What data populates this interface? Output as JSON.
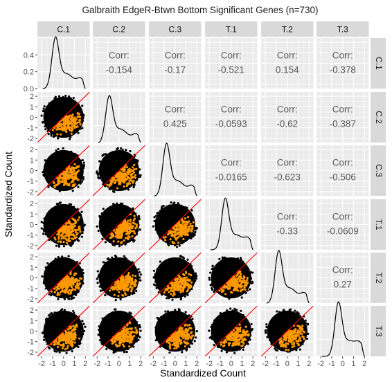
{
  "chart_data": {
    "type": "scatter",
    "title": "Galbraith EdgeR-Btwn Bottom Significant Genes (n=730)",
    "xlabel": "Standardized Count",
    "ylabel": "Standardized Count",
    "variables": [
      "C.1",
      "C.2",
      "C.3",
      "T.1",
      "T.2",
      "T.3"
    ],
    "axis_range": [
      -2.4,
      2.4
    ],
    "axis_ticks": [
      -2,
      -1,
      0,
      1,
      2
    ],
    "axis_tick_labels": [
      "-2",
      "-1",
      "0",
      "1",
      "2"
    ],
    "density_axis_ticks": [
      0.0,
      0.2,
      0.4
    ],
    "density_axis_tick_labels": [
      "0.0",
      "0.2",
      "0.4"
    ],
    "density_ylim": [
      0,
      0.6
    ],
    "corr_label": "Corr:",
    "correlations": [
      {
        "row": "C.1",
        "col": "C.2",
        "value": "-0.154"
      },
      {
        "row": "C.1",
        "col": "C.3",
        "value": "-0.17"
      },
      {
        "row": "C.1",
        "col": "T.1",
        "value": "-0.521"
      },
      {
        "row": "C.1",
        "col": "T.2",
        "value": "0.154"
      },
      {
        "row": "C.1",
        "col": "T.3",
        "value": "-0.378"
      },
      {
        "row": "C.2",
        "col": "C.3",
        "value": "0.425"
      },
      {
        "row": "C.2",
        "col": "T.1",
        "value": "-0.0593"
      },
      {
        "row": "C.2",
        "col": "T.2",
        "value": "-0.62"
      },
      {
        "row": "C.2",
        "col": "T.3",
        "value": "-0.387"
      },
      {
        "row": "C.3",
        "col": "T.1",
        "value": "-0.0165"
      },
      {
        "row": "C.3",
        "col": "T.2",
        "value": "-0.623"
      },
      {
        "row": "C.3",
        "col": "T.3",
        "value": "-0.506"
      },
      {
        "row": "T.1",
        "col": "T.2",
        "value": "-0.33"
      },
      {
        "row": "T.1",
        "col": "T.3",
        "value": "-0.0609"
      },
      {
        "row": "T.2",
        "col": "T.3",
        "value": "0.27"
      }
    ],
    "diagonal_peaks": [
      {
        "variable": "C.1",
        "x": -0.75,
        "y": 0.55
      },
      {
        "variable": "C.2",
        "x": -0.9,
        "y": 0.5
      },
      {
        "variable": "C.3",
        "x": -0.8,
        "y": 0.56
      },
      {
        "variable": "T.1",
        "x": -0.55,
        "y": 0.55
      },
      {
        "variable": "T.2",
        "x": -0.8,
        "y": 0.56
      },
      {
        "variable": "T.3",
        "x": -0.4,
        "y": 0.58
      }
    ],
    "reference_line": "y = x",
    "background_point_color": "#000000",
    "highlight_point_color": "#ff9900",
    "reference_line_color": "#ff0000",
    "panel_background": "#ebebeb",
    "strip_background": "#d9d9d9",
    "grid": true
  }
}
